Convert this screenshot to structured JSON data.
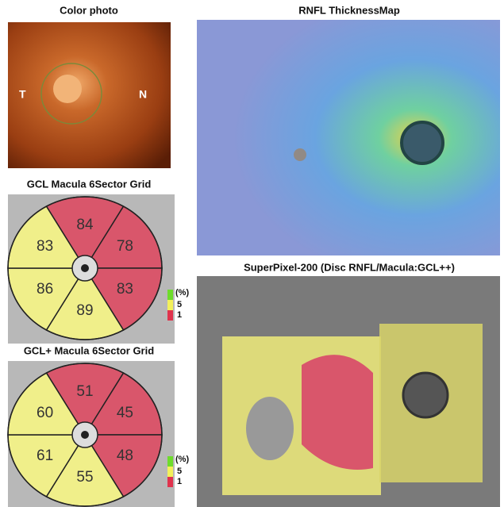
{
  "color_photo": {
    "title": "Color photo",
    "left_label": "T",
    "right_label": "N"
  },
  "rnfl_map": {
    "title": "RNFL ThicknessMap"
  },
  "superpixel": {
    "title": "SuperPixel-200 (Disc RNFL/Macula:GCL++)"
  },
  "gcl_grid": {
    "title": "GCL Macula 6Sector Grid",
    "sectors": [
      {
        "label": "84",
        "color": "#d9566b"
      },
      {
        "label": "78",
        "color": "#d9566b"
      },
      {
        "label": "83",
        "color": "#d9566b"
      },
      {
        "label": "89",
        "color": "#f0ef8a"
      },
      {
        "label": "86",
        "color": "#f0ef8a"
      },
      {
        "label": "83",
        "color": "#f0ef8a"
      }
    ],
    "legend": {
      "unit": "(%)",
      "labels": [
        "5",
        "1"
      ],
      "colors": [
        "#6edc2c",
        "#f3f05a",
        "#e0334d"
      ]
    }
  },
  "gcl_plus_grid": {
    "title": "GCL+ Macula 6Sector Grid",
    "sectors": [
      {
        "label": "51",
        "color": "#d9566b"
      },
      {
        "label": "45",
        "color": "#d9566b"
      },
      {
        "label": "48",
        "color": "#d9566b"
      },
      {
        "label": "55",
        "color": "#f0ef8a"
      },
      {
        "label": "61",
        "color": "#f0ef8a"
      },
      {
        "label": "60",
        "color": "#f0ef8a"
      }
    ],
    "legend": {
      "unit": "(%)",
      "labels": [
        "5",
        "1"
      ],
      "colors": [
        "#6edc2c",
        "#f3f05a",
        "#e0334d"
      ]
    }
  }
}
